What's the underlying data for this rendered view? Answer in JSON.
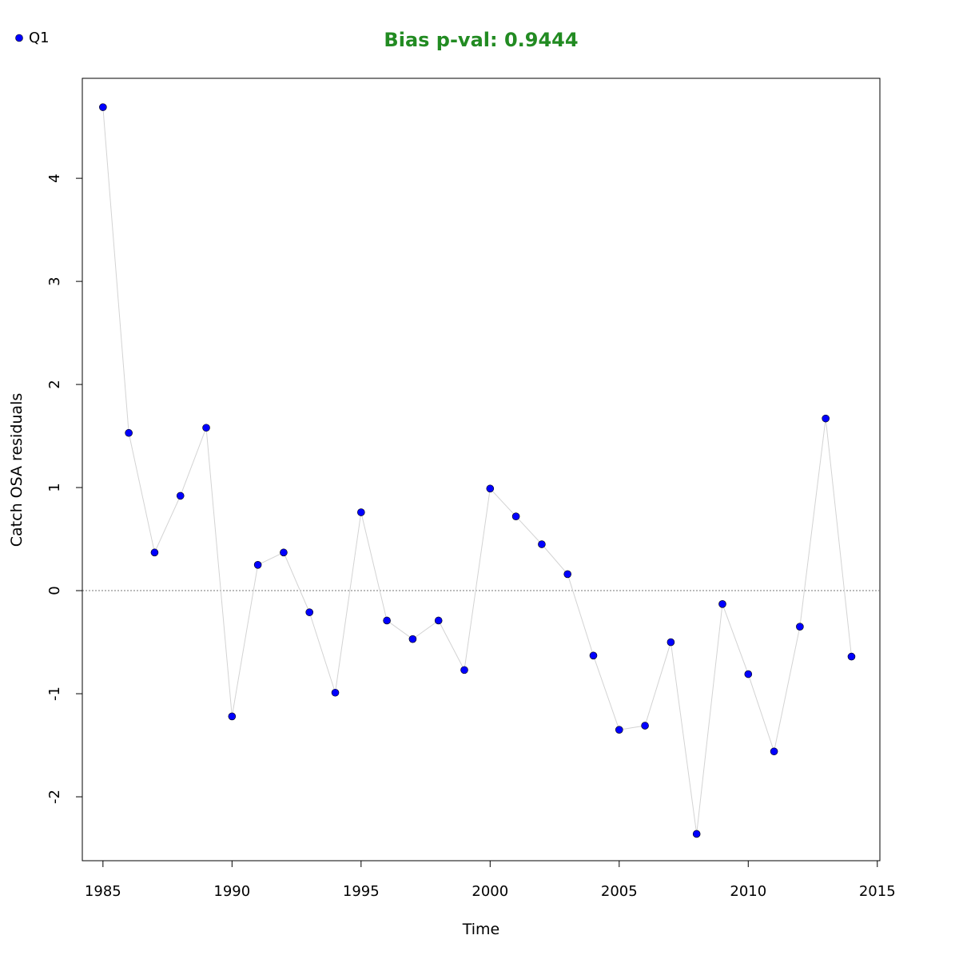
{
  "chart_data": {
    "type": "scatter",
    "title": "Bias p-val: 0.9444",
    "title_color": "#228b22",
    "xlabel": "Time",
    "ylabel": "Catch OSA residuals",
    "xlim": [
      1984.2,
      2015.1
    ],
    "ylim": [
      -2.62,
      4.97
    ],
    "xticks": [
      1985,
      1990,
      1995,
      2000,
      2005,
      2010,
      2015
    ],
    "yticks": [
      -2,
      -1,
      0,
      1,
      2,
      3,
      4
    ],
    "reference_line": 0,
    "legend": {
      "position": "top-left",
      "entries": [
        "Q1"
      ]
    },
    "point_color": "#0000ff",
    "line_color": "#d3d3d3",
    "series": [
      {
        "name": "Q1",
        "x": [
          1985,
          1986,
          1987,
          1988,
          1989,
          1990,
          1991,
          1992,
          1993,
          1994,
          1995,
          1996,
          1997,
          1998,
          1999,
          2000,
          2001,
          2002,
          2003,
          2004,
          2005,
          2006,
          2007,
          2008,
          2009,
          2010,
          2011,
          2012,
          2013,
          2014
        ],
        "y": [
          4.69,
          1.53,
          0.37,
          0.92,
          1.58,
          -1.22,
          0.25,
          0.37,
          -0.21,
          -0.99,
          0.76,
          -0.29,
          -0.47,
          -0.29,
          -0.77,
          0.99,
          0.72,
          0.45,
          0.16,
          -0.63,
          -1.35,
          -1.31,
          -0.5,
          -2.36,
          -0.13,
          -0.81,
          -1.56,
          -0.35,
          1.67,
          -0.64
        ]
      }
    ]
  }
}
